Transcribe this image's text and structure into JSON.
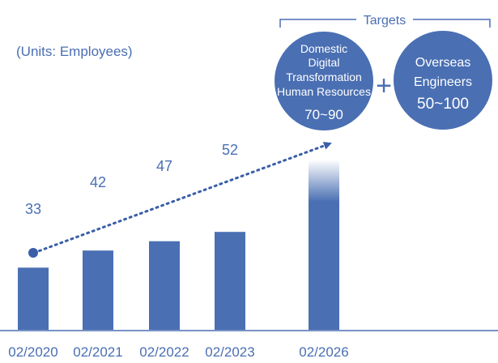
{
  "chart_data": {
    "type": "bar",
    "units_note": "(Units: Employees)",
    "categories": [
      "02/2020",
      "02/2021",
      "02/2022",
      "02/2023",
      "02/2026"
    ],
    "values": [
      33,
      42,
      47,
      52,
      null
    ],
    "value_labels": [
      "33",
      "42",
      "47",
      "52",
      ""
    ],
    "target": {
      "heading": "Targets",
      "domestic": {
        "label_lines": [
          "Domestic",
          "Digital",
          "Transformation",
          "Human Resources"
        ],
        "range_label": "70~90",
        "range": [
          70,
          90
        ]
      },
      "plus": "+",
      "overseas": {
        "label_lines": [
          "Overseas",
          "Engineers"
        ],
        "range_label": "50~100",
        "range": [
          50,
          100
        ]
      }
    },
    "bar_color": "#4a6fb3",
    "accent_color": "#3a5ea8",
    "axis_color": "#4a6fb3"
  }
}
